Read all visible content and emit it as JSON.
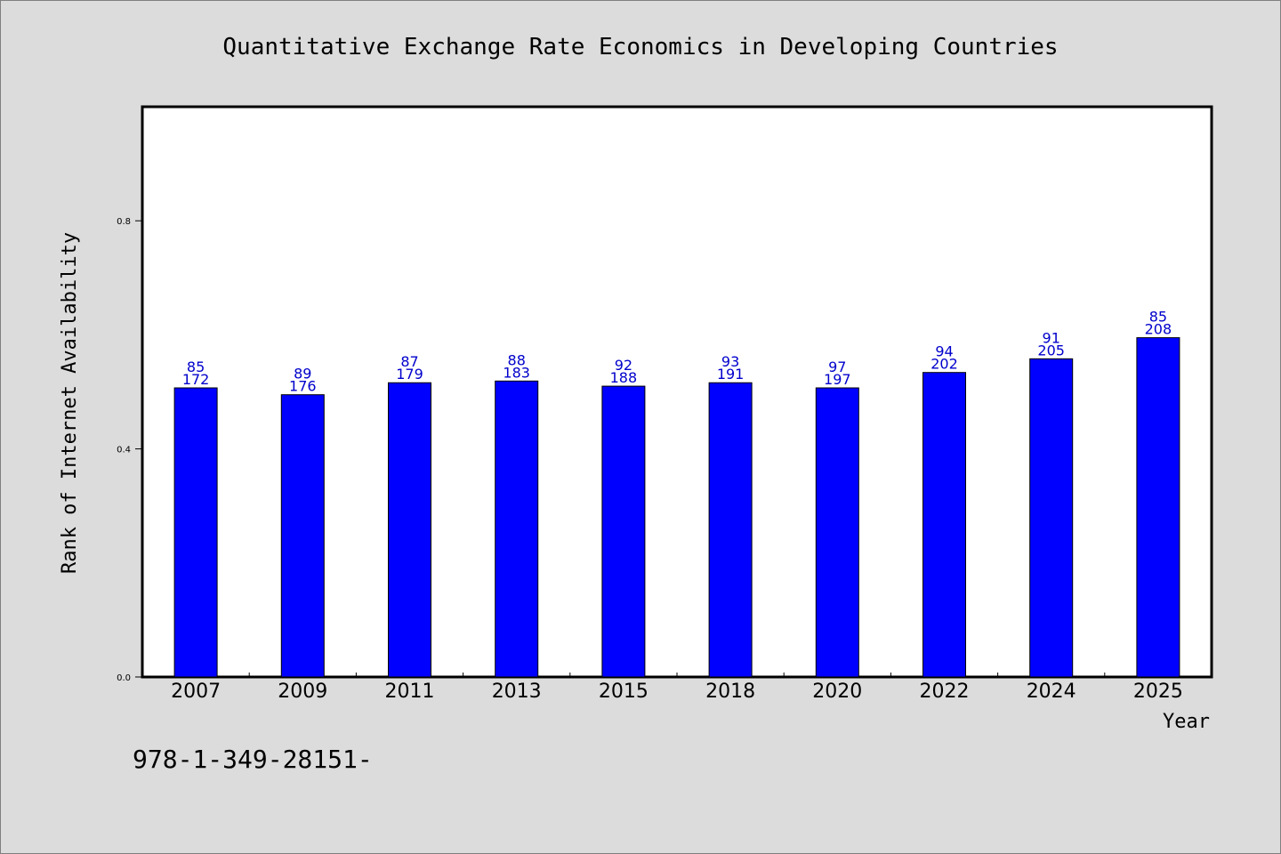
{
  "colors": {
    "background": "#dcdcdc",
    "plot_background": "#ffffff",
    "bar": "#0000ff",
    "bar_label": "#0000cc",
    "text": "#000000"
  },
  "footer": {
    "isbn": "978-1-349-28151-"
  },
  "chart_data": {
    "type": "bar",
    "title": "Quantitative Exchange Rate Economics in Developing Countries",
    "xlabel": "Year",
    "ylabel": "Rank of Internet Availability",
    "categories": [
      "2007",
      "2009",
      "2011",
      "2013",
      "2015",
      "2018",
      "2020",
      "2022",
      "2024",
      "2025"
    ],
    "values": [
      0.507,
      0.495,
      0.516,
      0.519,
      0.51,
      0.516,
      0.507,
      0.534,
      0.558,
      0.595
    ],
    "label_top": [
      "85",
      "89",
      "87",
      "88",
      "92",
      "93",
      "97",
      "94",
      "91",
      "85"
    ],
    "label_bottom": [
      "172",
      "176",
      "179",
      "183",
      "188",
      "191",
      "197",
      "202",
      "205",
      "208"
    ],
    "ylim": [
      0,
      1.0
    ],
    "yticks": [
      {
        "value": 0.0,
        "label": "0.0"
      },
      {
        "value": 0.4,
        "label": "0.4"
      },
      {
        "value": 0.8,
        "label": "0.8"
      }
    ],
    "grid": false,
    "legend": "none"
  }
}
